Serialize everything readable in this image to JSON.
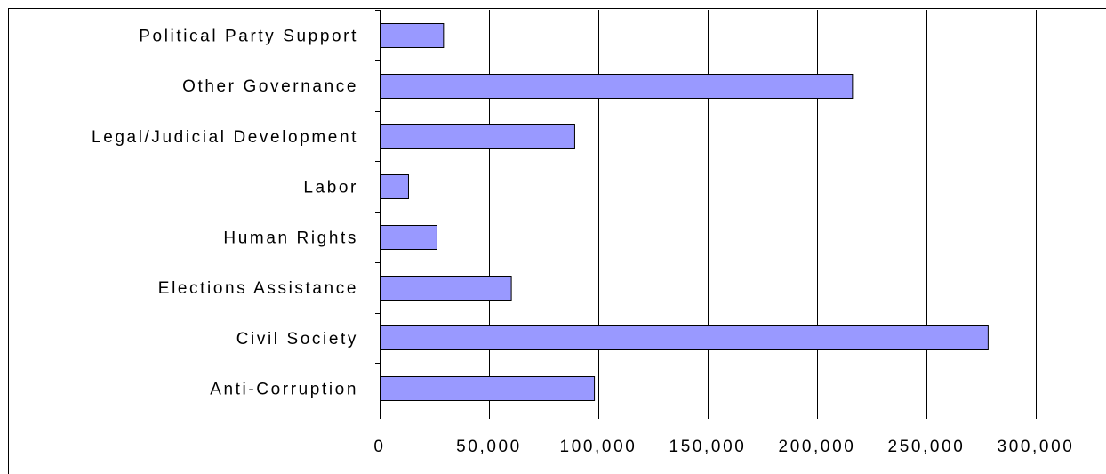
{
  "chart_data": {
    "type": "bar",
    "orientation": "horizontal",
    "categories": [
      "Political Party Support",
      "Other Governance",
      "Legal/Judicial Development",
      "Labor",
      "Human Rights",
      "Elections Assistance",
      "Civil Society",
      "Anti-Corruption"
    ],
    "values": [
      29000,
      216000,
      89000,
      13000,
      26000,
      60000,
      278000,
      98000
    ],
    "xlim": [
      0,
      300000
    ],
    "xticks": [
      0,
      50000,
      100000,
      150000,
      200000,
      250000,
      300000
    ],
    "xtick_labels": [
      "0",
      "50,000",
      "100,000",
      "150,000",
      "200,000",
      "250,000",
      "300,000"
    ],
    "grid": "vertical",
    "legend": "none",
    "title": "",
    "xlabel": "",
    "ylabel": "",
    "colors": {
      "bar_fill": "#9999ff",
      "bar_stroke": "#000000",
      "gridline": "#000000",
      "background": "#ffffff"
    }
  }
}
